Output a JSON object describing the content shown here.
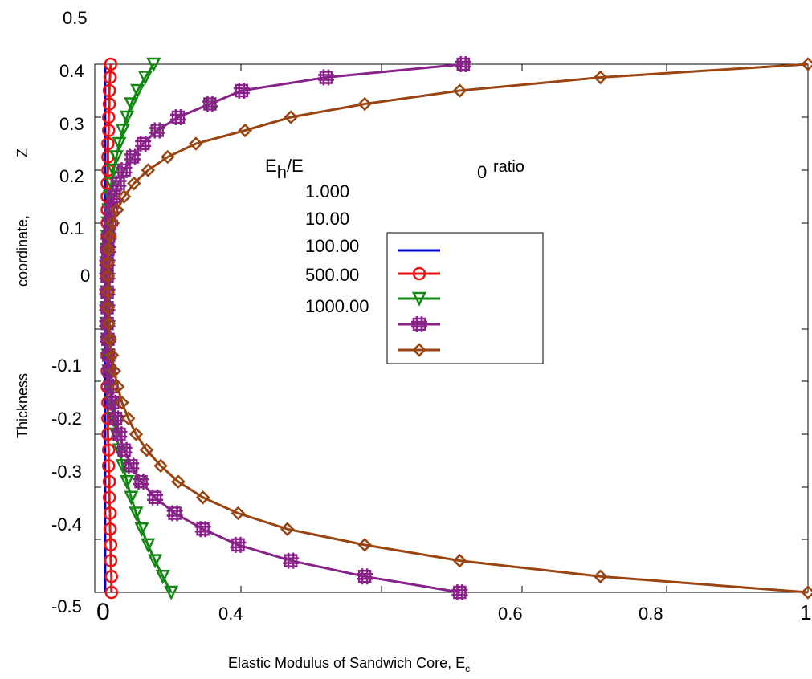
{
  "chart_data": {
    "type": "line",
    "xlabel": "Elastic Modulus of Sandwich Core, E",
    "xlabel_sub": "c",
    "ylabel_parts": [
      "Thickness",
      "coordinate,",
      "Z"
    ],
    "xlim": [
      0,
      1
    ],
    "ylim": [
      -0.5,
      0.5
    ],
    "x_tick_labels": [
      "0",
      "0.4",
      "0.6",
      "0.8",
      "1"
    ],
    "y_tick_labels": [
      "0.5",
      "0.4",
      "0.3",
      "0.2",
      "0.1",
      "0",
      "-0.1",
      "-0.2",
      "-0.3",
      "-0.4",
      "-0.5"
    ],
    "legend": {
      "title_main": "E",
      "title_sub": "h",
      "title_rest": "/E",
      "title_sub2": "0",
      "title_tail": "ratio",
      "labels": [
        "1.000",
        "10.00",
        "100.00",
        "500.00",
        "1000.00"
      ],
      "placement": "center"
    },
    "grid": false,
    "y": [
      -0.5,
      -0.475,
      -0.45,
      -0.425,
      -0.4,
      -0.375,
      -0.35,
      -0.325,
      -0.3,
      -0.275,
      -0.25,
      -0.225,
      -0.2,
      -0.175,
      -0.15,
      -0.125,
      -0.1,
      -0.075,
      -0.05,
      -0.025,
      0,
      0.025,
      0.05,
      0.075,
      0.1,
      0.125,
      0.15,
      0.175,
      0.2,
      0.225,
      0.25,
      0.275,
      0.3,
      0.325,
      0.35,
      0.375,
      0.4
    ],
    "series": [
      {
        "name": "1.000",
        "color": "#0000cc",
        "marker": "none",
        "x": [
          0.001,
          0.001,
          0.001,
          0.001,
          0.001,
          0.001,
          0.001,
          0.001,
          0.001,
          0.001,
          0.001,
          0.001,
          0.001,
          0.001,
          0.001,
          0.001,
          0.001,
          0.001,
          0.001,
          0.001,
          0.001,
          0.001,
          0.001,
          0.001,
          0.001,
          0.001,
          0.001,
          0.001,
          0.001,
          0.001,
          0.001,
          0.001,
          0.001,
          0.001,
          0.001,
          0.001,
          0.001
        ]
      },
      {
        "name": "10.00",
        "color": "#ee1111",
        "marker": "circle",
        "x": [
          0.01,
          0.01,
          0.009,
          0.009,
          0.008,
          0.008,
          0.007,
          0.007,
          0.006,
          0.006,
          0.005,
          0.005,
          0.005,
          0.004,
          0.004,
          0.004,
          0.004,
          0.004,
          0.003,
          0.003,
          0.003,
          0.003,
          0.003,
          0.004,
          0.004,
          0.004,
          0.004,
          0.004,
          0.005,
          0.005,
          0.005,
          0.006,
          0.006,
          0.007,
          0.007,
          0.008,
          0.009
        ]
      },
      {
        "name": "100.00",
        "color": "#118811",
        "marker": "triangle-down",
        "x": [
          0.095,
          0.083,
          0.072,
          0.062,
          0.053,
          0.045,
          0.038,
          0.032,
          0.026,
          0.021,
          0.017,
          0.013,
          0.01,
          0.008,
          0.006,
          0.005,
          0.004,
          0.003,
          0.003,
          0.003,
          0.003,
          0.003,
          0.003,
          0.004,
          0.005,
          0.006,
          0.008,
          0.01,
          0.013,
          0.017,
          0.021,
          0.026,
          0.032,
          0.038,
          0.047,
          0.058,
          0.07
        ]
      },
      {
        "name": "500.00",
        "color": "#882288",
        "marker": "square-hash",
        "x": [
          0.505,
          0.37,
          0.265,
          0.19,
          0.14,
          0.1,
          0.072,
          0.052,
          0.038,
          0.028,
          0.021,
          0.016,
          0.012,
          0.009,
          0.007,
          0.006,
          0.005,
          0.004,
          0.004,
          0.004,
          0.004,
          0.004,
          0.005,
          0.006,
          0.008,
          0.01,
          0.014,
          0.02,
          0.028,
          0.04,
          0.055,
          0.075,
          0.105,
          0.15,
          0.195,
          0.315,
          0.51
        ]
      },
      {
        "name": "1000.00",
        "color": "#994411",
        "marker": "diamond",
        "x": [
          1.0,
          0.705,
          0.505,
          0.37,
          0.26,
          0.19,
          0.14,
          0.105,
          0.08,
          0.06,
          0.045,
          0.034,
          0.025,
          0.019,
          0.014,
          0.011,
          0.008,
          0.006,
          0.005,
          0.005,
          0.005,
          0.005,
          0.006,
          0.008,
          0.012,
          0.018,
          0.028,
          0.042,
          0.062,
          0.09,
          0.13,
          0.2,
          0.265,
          0.37,
          0.505,
          0.705,
          1.0
        ]
      }
    ]
  }
}
